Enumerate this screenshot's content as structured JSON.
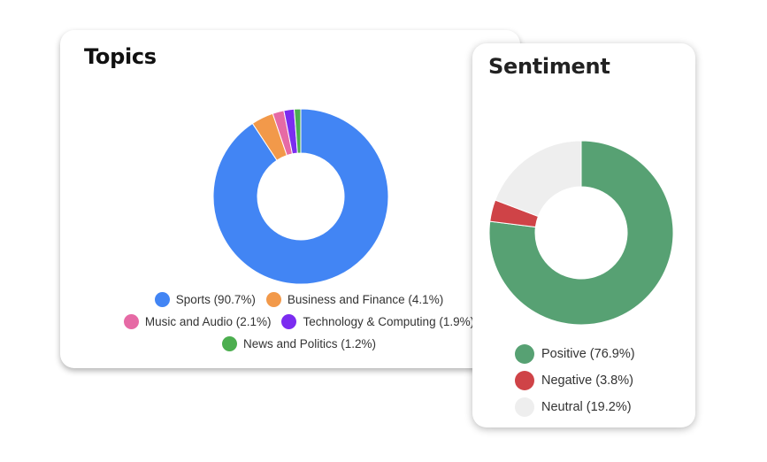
{
  "chart_data": [
    {
      "type": "pie",
      "donut": true,
      "title": "Topics",
      "categories": [
        "Sports",
        "Business and Finance",
        "Music and Audio",
        "Technology & Computing",
        "News and Politics"
      ],
      "values": [
        90.7,
        4.1,
        2.1,
        1.9,
        1.2
      ],
      "labels": [
        "Sports (90.7%)",
        "Business and Finance (4.1%)",
        "Music and Audio (2.1%)",
        "Technology & Computing (1.9%)",
        "News and Politics (1.2%)"
      ],
      "colors": [
        "#4285f4",
        "#f2994a",
        "#e66aa5",
        "#7b2cf0",
        "#4cae4f"
      ],
      "legend_position": "bottom"
    },
    {
      "type": "pie",
      "donut": true,
      "title": "Sentiment",
      "categories": [
        "Positive",
        "Negative",
        "Neutral"
      ],
      "values": [
        76.9,
        3.8,
        19.2
      ],
      "labels": [
        "Positive (76.9%)",
        "Negative (3.8%)",
        "Neutral (19.2%)"
      ],
      "colors": [
        "#57a173",
        "#cf4347",
        "#eeeeee"
      ],
      "legend_position": "bottom"
    }
  ]
}
